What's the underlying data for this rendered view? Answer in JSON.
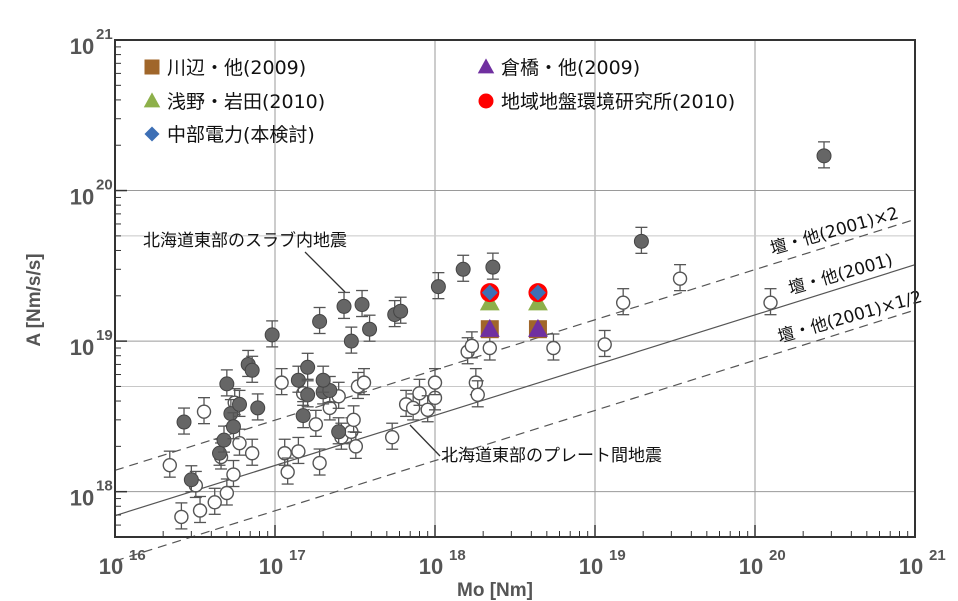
{
  "chart_data": {
    "type": "scatter",
    "xlabel": "Mo [Nm]",
    "ylabel": "A  [Nm/s/s]",
    "x_scale": "log",
    "y_scale": "log",
    "xlim": [
      1e+16,
      1e+21
    ],
    "ylim": [
      5e+17,
      1e+21
    ],
    "grid": true,
    "x_ticks": [
      {
        "value": 1e+16,
        "base": "10",
        "exp": "16"
      },
      {
        "value": 1e+17,
        "base": "10",
        "exp": "17"
      },
      {
        "value": 1e+18,
        "base": "10",
        "exp": "18"
      },
      {
        "value": 1e+19,
        "base": "10",
        "exp": "19"
      },
      {
        "value": 1e+20,
        "base": "10",
        "exp": "20"
      },
      {
        "value": 1e+21,
        "base": "10",
        "exp": "21"
      }
    ],
    "y_ticks": [
      {
        "value": 1e+18,
        "base": "10",
        "exp": "18"
      },
      {
        "value": 1e+19,
        "base": "10",
        "exp": "19"
      },
      {
        "value": 1e+20,
        "base": "10",
        "exp": "20"
      },
      {
        "value": 1e+21,
        "base": "10",
        "exp": "21"
      }
    ],
    "legend_position": "top-left",
    "series": [
      {
        "name": "川辺・他(2009)",
        "marker": "square",
        "color": "#a0662a",
        "points": [
          [
            2.2e+18,
            1.2e+19
          ],
          [
            4.4e+18,
            1.2e+19
          ]
        ]
      },
      {
        "name": "倉橋・他(2009)",
        "marker": "triangle",
        "color": "#7030a0",
        "points": [
          [
            2.2e+18,
            1.2e+19
          ],
          [
            4.4e+18,
            1.2e+19
          ]
        ]
      },
      {
        "name": "浅野・岩田(2010)",
        "marker": "triangle",
        "color": "#8db04a",
        "points": [
          [
            2.2e+18,
            1.8e+19
          ],
          [
            4.4e+18,
            1.8e+19
          ]
        ]
      },
      {
        "name": "地域地盤環境研究所(2010)",
        "marker": "circle",
        "color": "#ff0000",
        "points": [
          [
            2.2e+18,
            2.1e+19
          ],
          [
            4.4e+18,
            2.1e+19
          ]
        ]
      },
      {
        "name": "中部電力(本検討)",
        "marker": "diamond",
        "color": "#3d6fb5",
        "points": [
          [
            2.2e+18,
            2.1e+19
          ],
          [
            4.4e+18,
            2.1e+19
          ]
        ]
      }
    ],
    "filled_points": [
      [
        2.7e+16,
        2.9e+18
      ],
      [
        3e+16,
        1.2e+18
      ],
      [
        4.5e+16,
        1.8e+18
      ],
      [
        4.8e+16,
        2.2e+18
      ],
      [
        5e+16,
        5.2e+18
      ],
      [
        5.3e+16,
        3.3e+18
      ],
      [
        5.5e+16,
        2.7e+18
      ],
      [
        6e+16,
        3.8e+18
      ],
      [
        6.8e+16,
        7e+18
      ],
      [
        7.2e+16,
        6.4e+18
      ],
      [
        7.8e+16,
        3.6e+18
      ],
      [
        9.6e+16,
        1.1e+19
      ],
      [
        1.4e+17,
        5.5e+18
      ],
      [
        1.6e+17,
        4.4e+18
      ],
      [
        1.6e+17,
        6.7e+18
      ],
      [
        1.5e+17,
        3.2e+18
      ],
      [
        1.9e+17,
        1.35e+19
      ],
      [
        2e+17,
        4.6e+18
      ],
      [
        2.2e+17,
        4.7e+18
      ],
      [
        2.7e+17,
        1.7e+19
      ],
      [
        3e+17,
        1e+19
      ],
      [
        3.5e+17,
        1.75e+19
      ],
      [
        3.9e+17,
        1.2e+19
      ],
      [
        5.6e+17,
        1.5e+19
      ],
      [
        6.1e+17,
        1.58e+19
      ],
      [
        1.05e+18,
        2.3e+19
      ],
      [
        1.5e+18,
        3e+19
      ],
      [
        2.3e+18,
        3.1e+19
      ],
      [
        1.95e+19,
        4.6e+19
      ],
      [
        2.7e+20,
        1.7e+20
      ],
      [
        2e+17,
        5.5e+18
      ],
      [
        2.5e+17,
        2.5e+18
      ]
    ],
    "open_points": [
      [
        2.2e+16,
        1.5e+18
      ],
      [
        2.6e+16,
        6.8e+17
      ],
      [
        3.2e+16,
        1.1e+18
      ],
      [
        3.4e+16,
        7.5e+17
      ],
      [
        3.6e+16,
        3.4e+18
      ],
      [
        4.2e+16,
        8.5e+17
      ],
      [
        4.6e+16,
        1.7e+18
      ],
      [
        5e+16,
        9.8e+17
      ],
      [
        5.5e+16,
        1.3e+18
      ],
      [
        5.6e+16,
        3.9e+18
      ],
      [
        6e+16,
        2.1e+18
      ],
      [
        7.2e+16,
        1.8e+18
      ],
      [
        1.1e+17,
        5.3e+18
      ],
      [
        1.15e+17,
        1.8e+18
      ],
      [
        1.2e+17,
        1.35e+18
      ],
      [
        1.4e+17,
        1.85e+18
      ],
      [
        1.5e+17,
        4.5e+18
      ],
      [
        1.8e+17,
        2.8e+18
      ],
      [
        1.9e+17,
        1.55e+18
      ],
      [
        2.2e+17,
        3.6e+18
      ],
      [
        2.5e+17,
        4.3e+18
      ],
      [
        2.6e+17,
        2.3e+18
      ],
      [
        3e+17,
        2.5e+18
      ],
      [
        3.1e+17,
        3e+18
      ],
      [
        3.2e+17,
        2e+18
      ],
      [
        3.3e+17,
        5e+18
      ],
      [
        3.6e+17,
        5.3e+18
      ],
      [
        5.4e+17,
        2.3e+18
      ],
      [
        6.6e+17,
        3.8e+18
      ],
      [
        7.3e+17,
        3.6e+18
      ],
      [
        8e+17,
        4.5e+18
      ],
      [
        9e+17,
        3.5e+18
      ],
      [
        1e+18,
        4.2e+18
      ],
      [
        1e+18,
        5.3e+18
      ],
      [
        1.6e+18,
        8.5e+18
      ],
      [
        1.7e+18,
        9.3e+18
      ],
      [
        1.8e+18,
        5.3e+18
      ],
      [
        1.85e+18,
        4.4e+18
      ],
      [
        2.2e+18,
        9e+18
      ],
      [
        5.5e+18,
        9e+18
      ],
      [
        1.15e+19,
        9.5e+18
      ],
      [
        1.5e+19,
        1.8e+19
      ],
      [
        3.4e+19,
        2.6e+19
      ],
      [
        1.25e+20,
        1.8e+19
      ]
    ],
    "reference_lines": [
      {
        "label": "壇・他(2001)×2",
        "style": "dashed",
        "factor": 2
      },
      {
        "label": "壇・他(2001)",
        "style": "solid",
        "factor": 1
      },
      {
        "label": "壇・他(2001)×1/2",
        "style": "dashed",
        "factor": 0.5
      }
    ],
    "annotations": [
      {
        "text": "北海道東部のスラブ内地震"
      },
      {
        "text": "北海道東部のプレート間地震"
      }
    ]
  }
}
